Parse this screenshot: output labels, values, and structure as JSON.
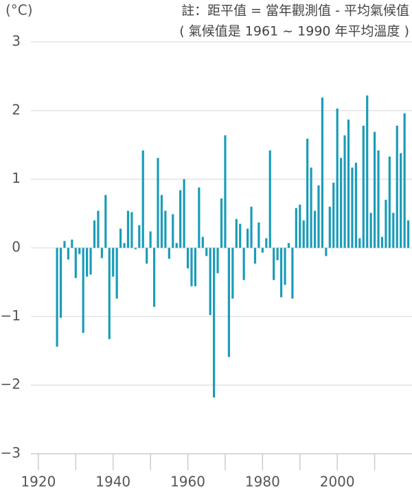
{
  "chart_data": {
    "type": "bar",
    "unit": "(°C)",
    "note": "註：距平值 = 當年觀測值 - 平均氣候值",
    "subnote": "( 氣候值是 1961 ~ 1990 年平均溫度 )",
    "color": "#1a9cb8",
    "x": [
      1925,
      1926,
      1927,
      1928,
      1929,
      1930,
      1931,
      1932,
      1933,
      1934,
      1935,
      1936,
      1937,
      1938,
      1939,
      1940,
      1941,
      1942,
      1943,
      1944,
      1945,
      1946,
      1947,
      1948,
      1949,
      1950,
      1951,
      1952,
      1953,
      1954,
      1955,
      1956,
      1957,
      1958,
      1959,
      1960,
      1961,
      1962,
      1963,
      1964,
      1965,
      1966,
      1967,
      1968,
      1969,
      1970,
      1971,
      1972,
      1973,
      1974,
      1975,
      1976,
      1977,
      1978,
      1979,
      1980,
      1981,
      1982,
      1983,
      1984,
      1985,
      1986,
      1987,
      1988,
      1989,
      1990,
      1991,
      1992,
      1993,
      1994,
      1995,
      1996,
      1997,
      1998,
      1999,
      2000,
      2001,
      2002,
      2003,
      2004,
      2005,
      2006,
      2007,
      2008,
      2009,
      2010,
      2011,
      2012,
      2013,
      2014,
      2015,
      2016,
      2017,
      2018,
      2019
    ],
    "values": [
      -1.44,
      -1.02,
      0.1,
      -0.17,
      0.12,
      -0.44,
      -0.09,
      -1.24,
      -0.42,
      -0.39,
      0.4,
      0.54,
      -0.15,
      0.77,
      -1.33,
      -0.42,
      -0.74,
      0.28,
      0.07,
      0.54,
      0.52,
      -0.02,
      0.33,
      1.42,
      -0.23,
      0.24,
      -0.86,
      1.31,
      0.77,
      0.54,
      -0.16,
      0.49,
      0.07,
      0.84,
      1.0,
      -0.3,
      -0.56,
      -0.56,
      0.88,
      0.16,
      -0.12,
      -0.98,
      -2.18,
      -0.37,
      0.72,
      1.64,
      -1.59,
      -0.74,
      0.42,
      0.35,
      -0.47,
      0.28,
      0.6,
      -0.23,
      0.37,
      -0.07,
      0.14,
      1.42,
      -0.47,
      -0.18,
      -0.72,
      -0.54,
      0.07,
      -0.74,
      0.58,
      0.63,
      0.4,
      1.59,
      1.17,
      0.54,
      0.91,
      2.19,
      -0.12,
      0.6,
      0.95,
      2.03,
      1.31,
      1.64,
      1.87,
      1.17,
      1.24,
      0.14,
      1.78,
      2.22,
      0.51,
      1.69,
      1.42,
      0.16,
      0.7,
      1.33,
      0.51,
      1.78,
      1.38,
      1.96,
      0.4
    ],
    "xlim": [
      1918,
      2020
    ],
    "xticks": [
      1920,
      1940,
      1960,
      1980,
      2000
    ],
    "xticks_minor": [
      1930,
      1950,
      1970,
      1990,
      2010
    ],
    "ylim": [
      -3,
      3
    ],
    "yticks": [
      {
        "value": -3,
        "label": "−3"
      },
      {
        "value": -2,
        "label": "−2"
      },
      {
        "value": -1,
        "label": "−1"
      },
      0,
      1,
      2,
      3
    ],
    "grid": true
  }
}
